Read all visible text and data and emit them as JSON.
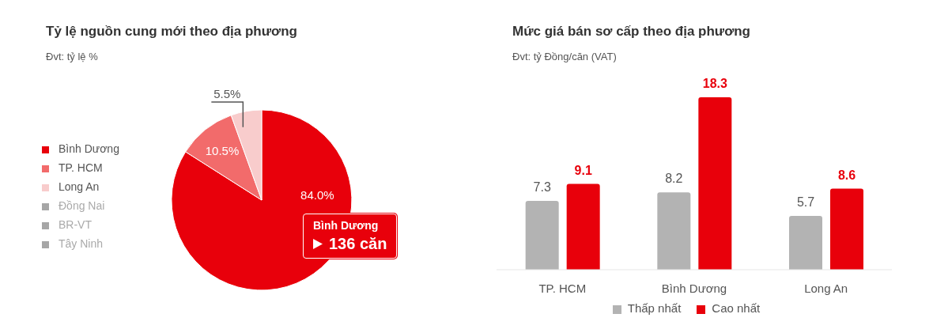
{
  "chart_data": [
    {
      "type": "pie",
      "title": "Tỷ lệ nguồn cung mới theo địa phương",
      "subtitle": "Đvt: tỷ lệ %",
      "categories": [
        "Bình Dương",
        "TP. HCM",
        "Long An",
        "Đồng Nai",
        "BR-VT",
        "Tây Ninh"
      ],
      "values": [
        84.0,
        10.5,
        5.5,
        0,
        0,
        0
      ],
      "colors": [
        "#e8000b",
        "#f26b6b",
        "#f8cccc",
        "#a6a6a6",
        "#a6a6a6",
        "#a6a6a6"
      ],
      "value_labels": [
        "84.0%",
        "10.5%",
        "5.5%",
        null,
        null,
        null
      ],
      "legend": "left",
      "annotations": [
        "Bình Dương",
        "136 căn"
      ]
    },
    {
      "type": "bar",
      "title": "Mức giá bán sơ cấp theo địa phương",
      "subtitle": "Đvt: tỷ Đồng/căn (VAT)",
      "categories": [
        "TP. HCM",
        "Bình Dương",
        "Long An"
      ],
      "series": [
        {
          "name": "Thấp nhất",
          "color": "#b3b3b3",
          "values": [
            7.3,
            8.2,
            5.7
          ]
        },
        {
          "name": "Cao nhất",
          "color": "#e8000b",
          "values": [
            9.1,
            18.3,
            8.6
          ]
        }
      ],
      "data_labels": true,
      "legend": "bottom"
    }
  ]
}
